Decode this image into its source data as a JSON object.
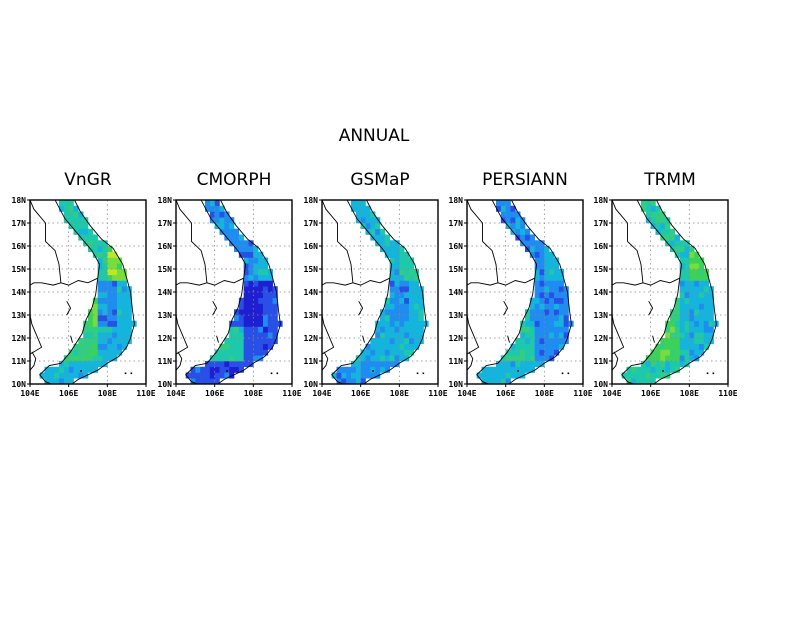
{
  "figure": {
    "title": "ANNUAL"
  },
  "axes": {
    "lat_ticks": [
      "10N",
      "11N",
      "12N",
      "13N",
      "14N",
      "15N",
      "16N",
      "17N",
      "18N"
    ],
    "lon_ticks": [
      "104E",
      "106E",
      "108E",
      "110E"
    ],
    "lat_range": [
      10,
      18
    ],
    "lon_range": [
      104,
      110
    ],
    "grid": "dotted"
  },
  "colors": {
    "scale": [
      "#1e1ed2",
      "#2850e6",
      "#1e8cf0",
      "#14b4dc",
      "#1ec8aa",
      "#32cd82",
      "#3cd25a",
      "#78dc3c",
      "#bee628",
      "#f0c814"
    ],
    "land_outline": "#000000",
    "background": "#ffffff"
  },
  "panels": [
    {
      "name": "VnGR",
      "levels": {
        "north": 4,
        "nc_coast": 7,
        "central_high": 6,
        "plateau": 2,
        "east": 3,
        "se": 5,
        "south": 3
      }
    },
    {
      "name": "CMORPH",
      "levels": {
        "north": 2,
        "nc_coast": 3,
        "central_high": 1,
        "plateau": 0,
        "east": 1,
        "se": 4,
        "south": 1
      }
    },
    {
      "name": "GSMaP",
      "levels": {
        "north": 3,
        "nc_coast": 4,
        "central_high": 3,
        "plateau": 2,
        "east": 3,
        "se": 3,
        "south": 2
      }
    },
    {
      "name": "PERSIANN",
      "levels": {
        "north": 2,
        "nc_coast": 3,
        "central_high": 3,
        "plateau": 2,
        "east": 2,
        "se": 4,
        "south": 3
      }
    },
    {
      "name": "TRMM",
      "levels": {
        "north": 4,
        "nc_coast": 6,
        "central_high": 5,
        "plateau": 3,
        "east": 3,
        "se": 6,
        "south": 4
      }
    }
  ]
}
